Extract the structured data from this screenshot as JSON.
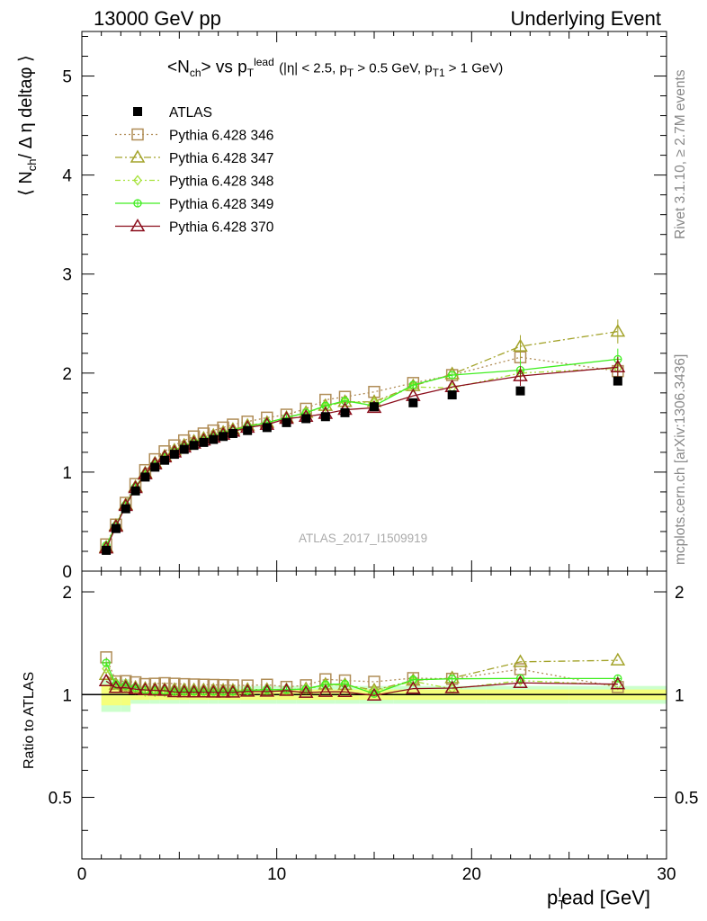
{
  "header": {
    "left": "13000 GeV pp",
    "right": "Underlying Event"
  },
  "side_text": {
    "rivet": "Rivet 3.1.10, ≥ 2.7M events",
    "mcplots": "mcplots.cern.ch [arXiv:1306.3436]"
  },
  "title": {
    "main": "<N",
    "main_sub": "ch",
    "mid": "> vs p",
    "mid_sub": "T",
    "mid_sup": "lead",
    "cuts_a": "(|η| < 2.5, p",
    "cuts_a_sub": "T",
    "cuts_b": " > 0.5 GeV, p",
    "cuts_b_sub": "T1",
    "cuts_c": " > 1 GeV)"
  },
  "analysis_label": "ATLAS_2017_I1509919",
  "y_title": {
    "left": "⟨ N",
    "sub": "ch",
    "right": "/ Δ η deltaφ ⟩"
  },
  "ratio_y_title": "Ratio to ATLAS",
  "x_title": {
    "p": "p",
    "sub": "T",
    "sup": "l",
    "rest": "ead [GeV]"
  },
  "colors": {
    "data": "#000000",
    "p346": "#b08d57",
    "p347": "#a3a32a",
    "p348": "#a6e23a",
    "p349": "#40ee20",
    "p370": "#8b0e1c",
    "band_inner": "#ffff66",
    "band_outer": "#ccffcc"
  },
  "chart_data": {
    "type": "scatter",
    "x": [
      1.25,
      1.75,
      2.25,
      2.75,
      3.25,
      3.75,
      4.25,
      4.75,
      5.25,
      5.75,
      6.25,
      6.75,
      7.25,
      7.75,
      8.5,
      9.5,
      10.5,
      11.5,
      12.5,
      13.5,
      15.0,
      17.0,
      19.0,
      22.5,
      27.5
    ],
    "xlim": [
      0,
      30
    ],
    "ylim": [
      0,
      5.45
    ],
    "ratio_ylim": [
      0.33,
      2.3
    ],
    "x_ticks": [
      0,
      10,
      20,
      30
    ],
    "y_ticks": [
      1,
      2,
      3,
      4,
      5
    ],
    "ratio_y_ticks": [
      0.5,
      1,
      2
    ],
    "series": [
      {
        "name": "ATLAS",
        "key": "data",
        "marker": "square-filled",
        "values": [
          0.21,
          0.43,
          0.63,
          0.81,
          0.95,
          1.05,
          1.12,
          1.18,
          1.23,
          1.27,
          1.3,
          1.33,
          1.36,
          1.39,
          1.42,
          1.45,
          1.5,
          1.54,
          1.56,
          1.6,
          1.66,
          1.7,
          1.78,
          1.82,
          1.92
        ]
      },
      {
        "name": "Pythia 6.428 346",
        "key": "p346",
        "marker": "square-open",
        "dash": "2,3",
        "values": [
          0.27,
          0.47,
          0.69,
          0.88,
          1.02,
          1.13,
          1.21,
          1.27,
          1.32,
          1.36,
          1.39,
          1.42,
          1.45,
          1.48,
          1.51,
          1.55,
          1.58,
          1.64,
          1.73,
          1.76,
          1.81,
          1.9,
          1.98,
          2.16,
          2.02
        ]
      },
      {
        "name": "Pythia 6.428 347",
        "key": "p347",
        "marker": "triangle-open",
        "dash": "8,3,2,3",
        "values": [
          0.24,
          0.46,
          0.67,
          0.85,
          0.99,
          1.09,
          1.16,
          1.22,
          1.27,
          1.31,
          1.34,
          1.37,
          1.4,
          1.43,
          1.47,
          1.5,
          1.55,
          1.6,
          1.67,
          1.71,
          1.71,
          1.87,
          1.99,
          2.27,
          2.42
        ]
      },
      {
        "name": "Pythia 6.428 348",
        "key": "p348",
        "marker": "diamond-open",
        "dash": "6,3,2,3,2,3",
        "values": [
          0.25,
          0.46,
          0.66,
          0.84,
          0.97,
          1.07,
          1.14,
          1.2,
          1.25,
          1.29,
          1.32,
          1.35,
          1.38,
          1.42,
          1.46,
          1.5,
          1.55,
          1.6,
          1.66,
          1.71,
          1.7,
          1.86,
          1.85,
          2.0,
          2.05
        ]
      },
      {
        "name": "Pythia 6.428 349",
        "key": "p349",
        "marker": "circle-cross",
        "dash": "",
        "values": [
          0.26,
          0.46,
          0.67,
          0.85,
          0.98,
          1.08,
          1.15,
          1.21,
          1.26,
          1.3,
          1.33,
          1.36,
          1.39,
          1.42,
          1.46,
          1.5,
          1.55,
          1.6,
          1.67,
          1.72,
          1.67,
          1.88,
          1.98,
          2.03,
          2.14
        ]
      },
      {
        "name": "Pythia 6.428 370",
        "key": "p370",
        "marker": "triangle-open",
        "dash": "",
        "values": [
          0.23,
          0.45,
          0.66,
          0.84,
          0.98,
          1.08,
          1.15,
          1.2,
          1.25,
          1.29,
          1.32,
          1.35,
          1.38,
          1.41,
          1.45,
          1.48,
          1.54,
          1.56,
          1.59,
          1.63,
          1.65,
          1.77,
          1.86,
          1.97,
          2.06
        ]
      }
    ]
  }
}
